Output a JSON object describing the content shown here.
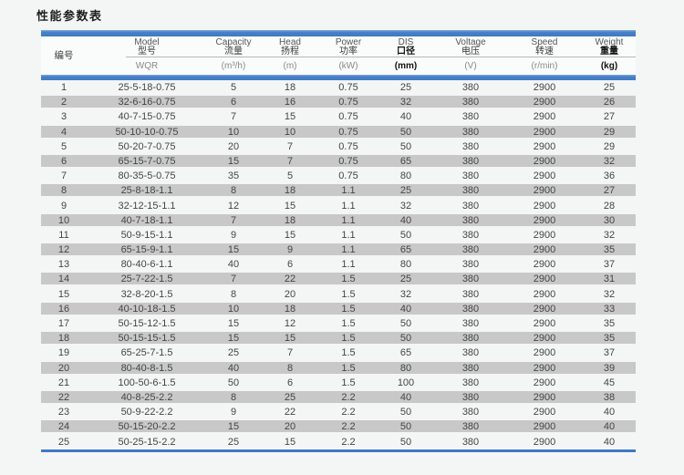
{
  "page": {
    "title": "性能参数表"
  },
  "colors": {
    "accent_blue": "#4681c8",
    "stripe_gray": "#c8c8c8",
    "page_background": "#f4f5f5",
    "header_background": "#fafbfb"
  },
  "chart_data": {
    "type": "table",
    "title": "性能参数表",
    "columns": [
      {
        "en": "",
        "zh": "编号",
        "unit": ""
      },
      {
        "en": "Model",
        "zh": "型号",
        "unit": "WQR"
      },
      {
        "en": "Capacity",
        "zh": "流量",
        "unit": "(m³/h)"
      },
      {
        "en": "Head",
        "zh": "扬程",
        "unit": "(m)"
      },
      {
        "en": "Power",
        "zh": "功率",
        "unit": "(kW)"
      },
      {
        "en": "DIS",
        "zh": "口径",
        "unit": "(mm)"
      },
      {
        "en": "Voltage",
        "zh": "电压",
        "unit": "(V)"
      },
      {
        "en": "Speed",
        "zh": "转速",
        "unit": "(r/min)"
      },
      {
        "en": "Weight",
        "zh": "重量",
        "unit": "(kg)"
      }
    ],
    "rows": [
      [
        "1",
        "25-5-18-0.75",
        "5",
        "18",
        "0.75",
        "25",
        "380",
        "2900",
        "25"
      ],
      [
        "2",
        "32-6-16-0.75",
        "6",
        "16",
        "0.75",
        "32",
        "380",
        "2900",
        "26"
      ],
      [
        "3",
        "40-7-15-0.75",
        "7",
        "15",
        "0.75",
        "40",
        "380",
        "2900",
        "27"
      ],
      [
        "4",
        "50-10-10-0.75",
        "10",
        "10",
        "0.75",
        "50",
        "380",
        "2900",
        "29"
      ],
      [
        "5",
        "50-20-7-0.75",
        "20",
        "7",
        "0.75",
        "50",
        "380",
        "2900",
        "29"
      ],
      [
        "6",
        "65-15-7-0.75",
        "15",
        "7",
        "0.75",
        "65",
        "380",
        "2900",
        "32"
      ],
      [
        "7",
        "80-35-5-0.75",
        "35",
        "5",
        "0.75",
        "80",
        "380",
        "2900",
        "36"
      ],
      [
        "8",
        "25-8-18-1.1",
        "8",
        "18",
        "1.1",
        "25",
        "380",
        "2900",
        "27"
      ],
      [
        "9",
        "32-12-15-1.1",
        "12",
        "15",
        "1.1",
        "32",
        "380",
        "2900",
        "28"
      ],
      [
        "10",
        "40-7-18-1.1",
        "7",
        "18",
        "1.1",
        "40",
        "380",
        "2900",
        "30"
      ],
      [
        "11",
        "50-9-15-1.1",
        "9",
        "15",
        "1.1",
        "50",
        "380",
        "2900",
        "32"
      ],
      [
        "12",
        "65-15-9-1.1",
        "15",
        "9",
        "1.1",
        "65",
        "380",
        "2900",
        "35"
      ],
      [
        "13",
        "80-40-6-1.1",
        "40",
        "6",
        "1.1",
        "80",
        "380",
        "2900",
        "37"
      ],
      [
        "14",
        "25-7-22-1.5",
        "7",
        "22",
        "1.5",
        "25",
        "380",
        "2900",
        "31"
      ],
      [
        "15",
        "32-8-20-1.5",
        "8",
        "20",
        "1.5",
        "32",
        "380",
        "2900",
        "32"
      ],
      [
        "16",
        "40-10-18-1.5",
        "10",
        "18",
        "1.5",
        "40",
        "380",
        "2900",
        "33"
      ],
      [
        "17",
        "50-15-12-1.5",
        "15",
        "12",
        "1.5",
        "50",
        "380",
        "2900",
        "35"
      ],
      [
        "18",
        "50-15-15-1.5",
        "15",
        "15",
        "1.5",
        "50",
        "380",
        "2900",
        "35"
      ],
      [
        "19",
        "65-25-7-1.5",
        "25",
        "7",
        "1.5",
        "65",
        "380",
        "2900",
        "37"
      ],
      [
        "20",
        "80-40-8-1.5",
        "40",
        "8",
        "1.5",
        "80",
        "380",
        "2900",
        "39"
      ],
      [
        "21",
        "100-50-6-1.5",
        "50",
        "6",
        "1.5",
        "100",
        "380",
        "2900",
        "45"
      ],
      [
        "22",
        "40-8-25-2.2",
        "8",
        "25",
        "2.2",
        "40",
        "380",
        "2900",
        "38"
      ],
      [
        "23",
        "50-9-22-2.2",
        "9",
        "22",
        "2.2",
        "50",
        "380",
        "2900",
        "40"
      ],
      [
        "24",
        "50-15-20-2.2",
        "15",
        "20",
        "2.2",
        "50",
        "380",
        "2900",
        "40"
      ],
      [
        "25",
        "50-25-15-2.2",
        "25",
        "15",
        "2.2",
        "50",
        "380",
        "2900",
        "40"
      ]
    ]
  }
}
